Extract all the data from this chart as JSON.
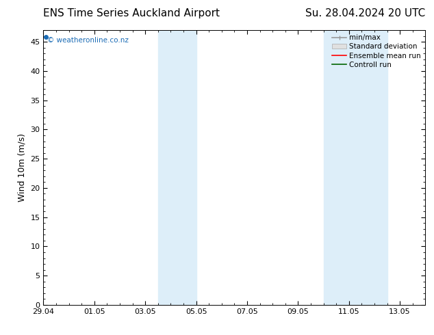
{
  "title_left": "ENS Time Series Auckland Airport",
  "title_right": "Su. 28.04.2024 20 UTC",
  "ylabel": "Wind 10m (m/s)",
  "ylim": [
    0,
    47
  ],
  "yticks": [
    0,
    5,
    10,
    15,
    20,
    25,
    30,
    35,
    40,
    45
  ],
  "xlim": [
    0,
    15
  ],
  "xtick_labels": [
    "29.04",
    "01.05",
    "03.05",
    "05.05",
    "07.05",
    "09.05",
    "11.05",
    "13.05"
  ],
  "xtick_positions": [
    0,
    2,
    4,
    6,
    8,
    10,
    12,
    14
  ],
  "shaded_bands": [
    {
      "x_start": 4.5,
      "x_end": 6.0
    },
    {
      "x_start": 11.0,
      "x_end": 12.0
    },
    {
      "x_start": 12.0,
      "x_end": 13.5
    }
  ],
  "shade_color": "#ddeef9",
  "background_color": "#ffffff",
  "watermark_text": "© weatheronline.co.nz",
  "watermark_color": "#1a6bb5",
  "legend_items": [
    {
      "label": "min/max",
      "color": "#aaaaaa"
    },
    {
      "label": "Standard deviation",
      "color": "#cccccc"
    },
    {
      "label": "Ensemble mean run",
      "color": "#ff0000"
    },
    {
      "label": "Controll run",
      "color": "#006400"
    }
  ],
  "title_fontsize": 11,
  "tick_fontsize": 8,
  "legend_fontsize": 7.5,
  "ylabel_fontsize": 9
}
